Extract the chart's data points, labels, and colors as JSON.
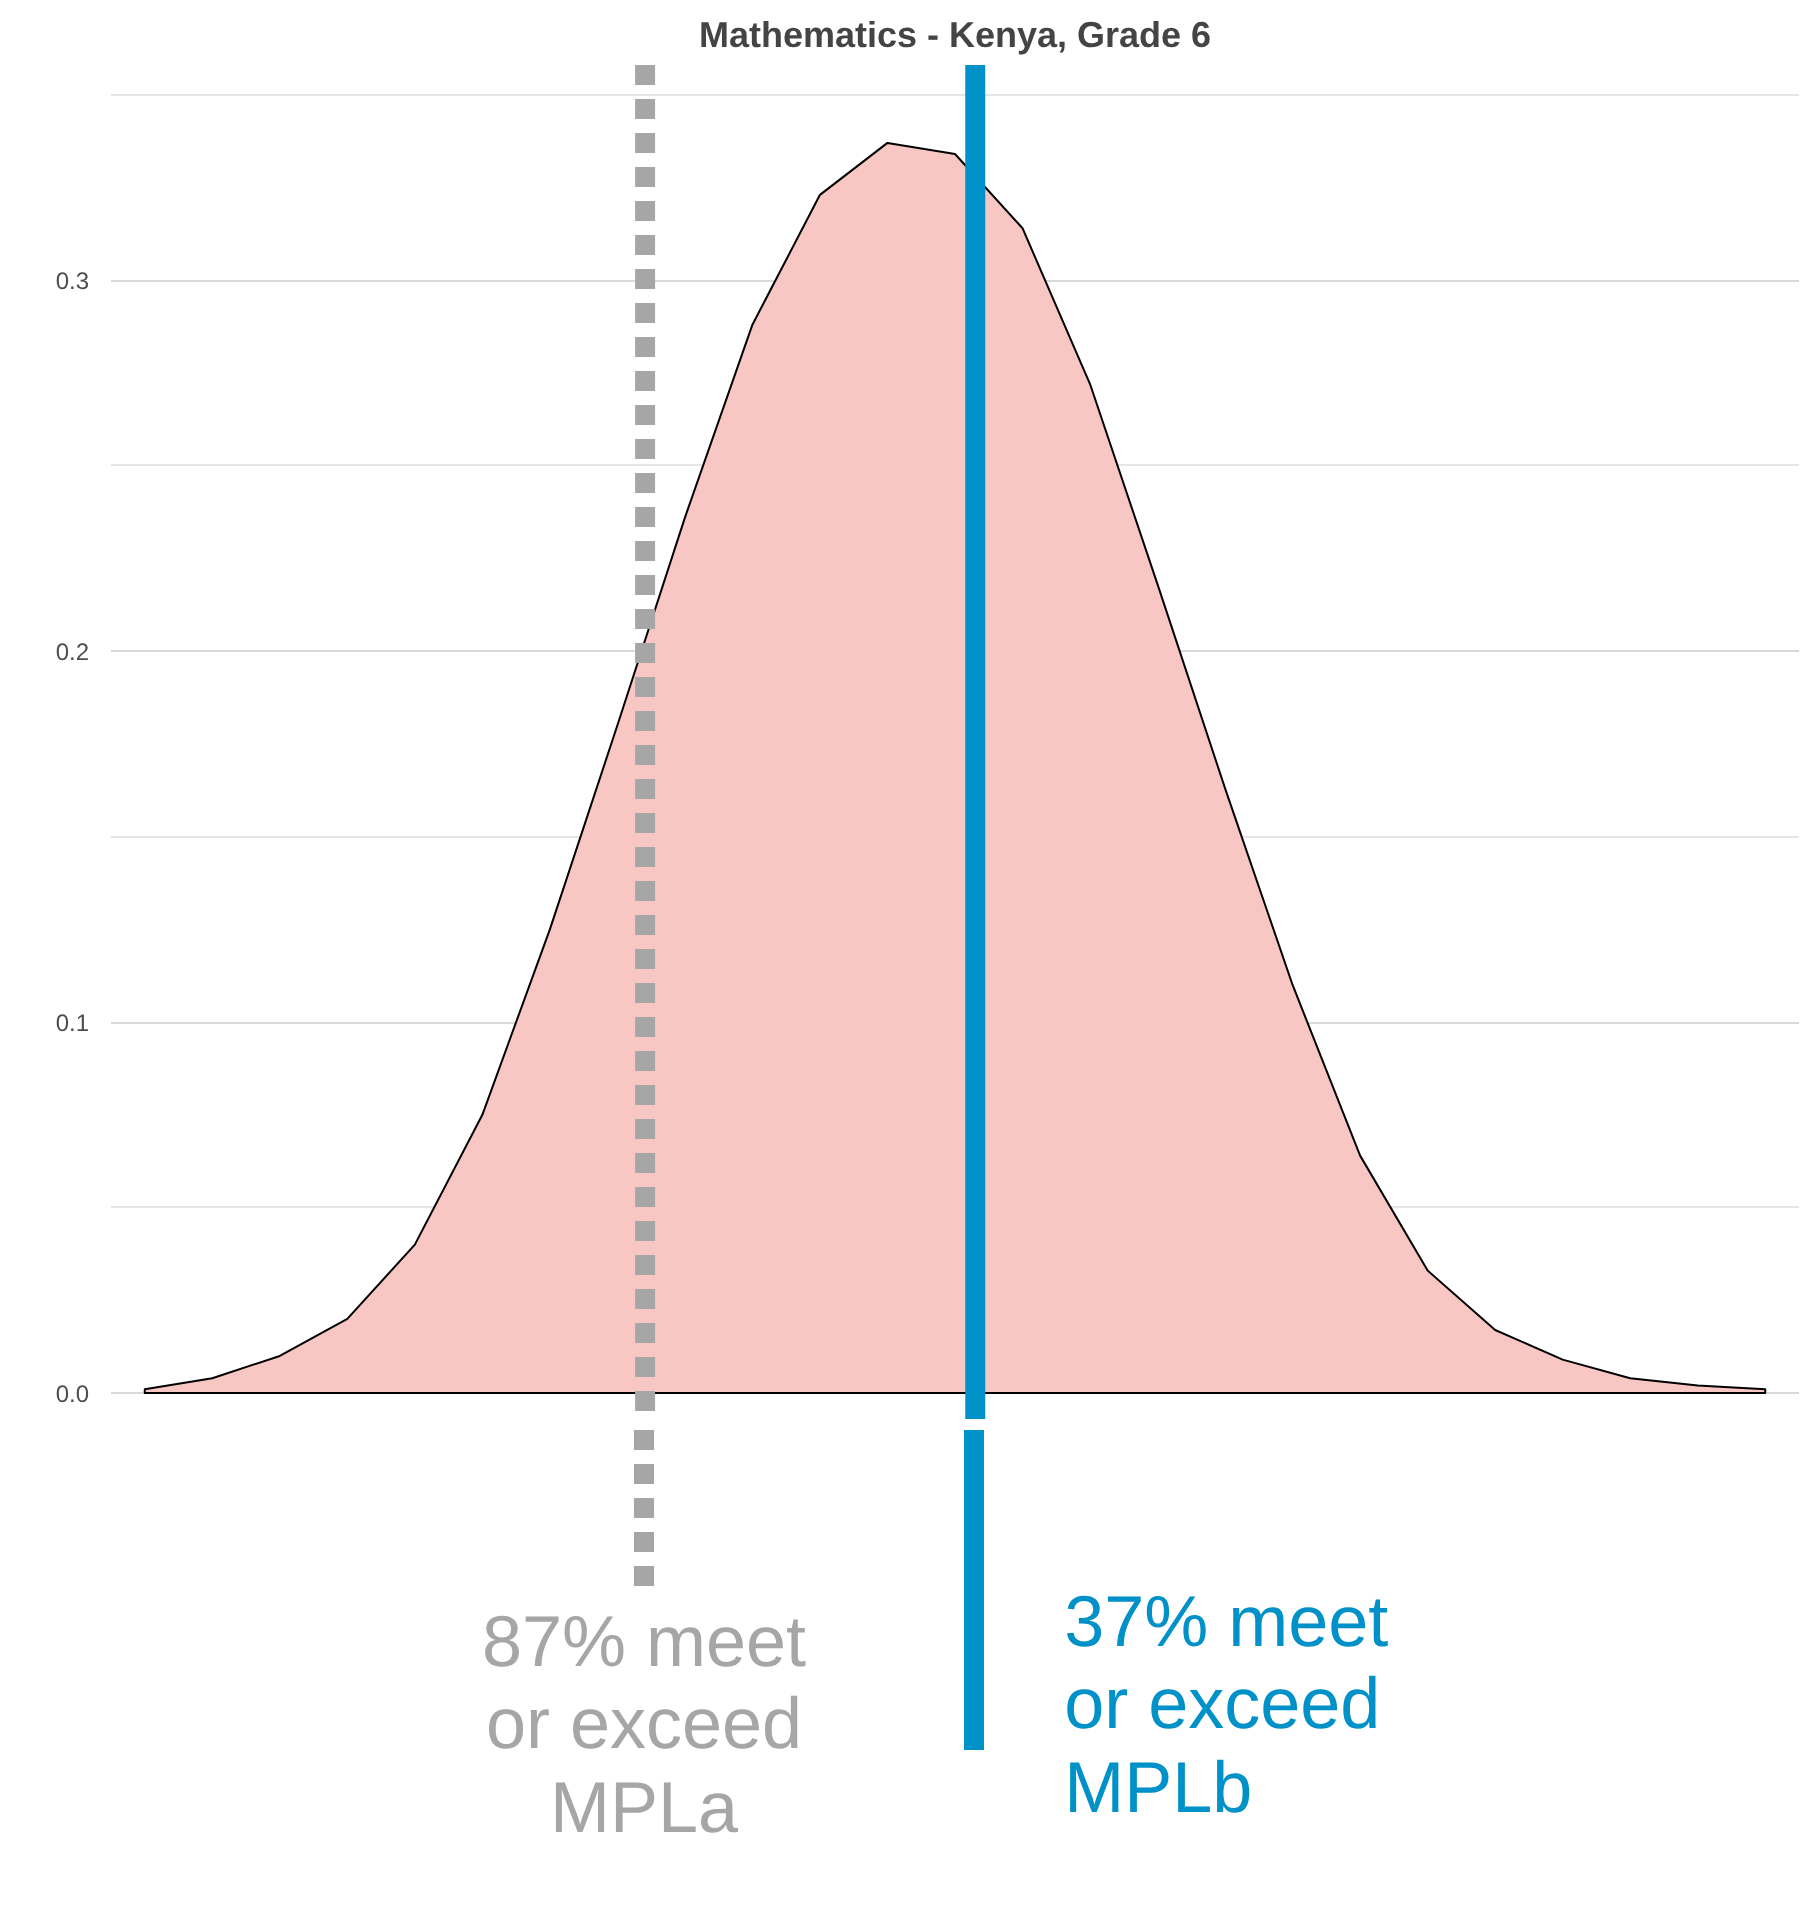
{
  "chart_data": {
    "type": "area",
    "title": "Mathematics - Kenya, Grade 6",
    "categories": [
      null,
      null,
      null,
      null,
      null,
      null,
      null,
      null,
      null,
      null,
      null,
      null,
      null,
      null,
      null,
      null,
      null,
      null,
      null,
      null,
      null,
      null,
      null,
      null,
      null
    ],
    "series": [
      {
        "color": "#f8c6c3",
        "values": [
          0.001,
          0.004,
          0.01,
          0.02,
          0.04,
          0.075,
          0.125,
          0.18,
          0.236,
          0.288,
          0.323,
          0.337,
          0.334,
          0.314,
          0.272,
          0.218,
          0.163,
          0.11,
          0.064,
          0.033,
          0.017,
          0.009,
          0.004,
          0.002,
          0.001
        ]
      }
    ],
    "ylim": [
      -0.007,
      0.358
    ],
    "yticks": [
      {
        "value": 0,
        "label": "0.0"
      },
      {
        "value": 0.1,
        "label": "0.1"
      },
      {
        "value": 0.2,
        "label": "0.2"
      },
      {
        "value": 0.3,
        "label": "0.3"
      }
    ],
    "grid": "y",
    "annotations": [
      "87% meet\nor exceed\nMPLa",
      "37% meet\nor exceed\nMPLb"
    ]
  }
}
